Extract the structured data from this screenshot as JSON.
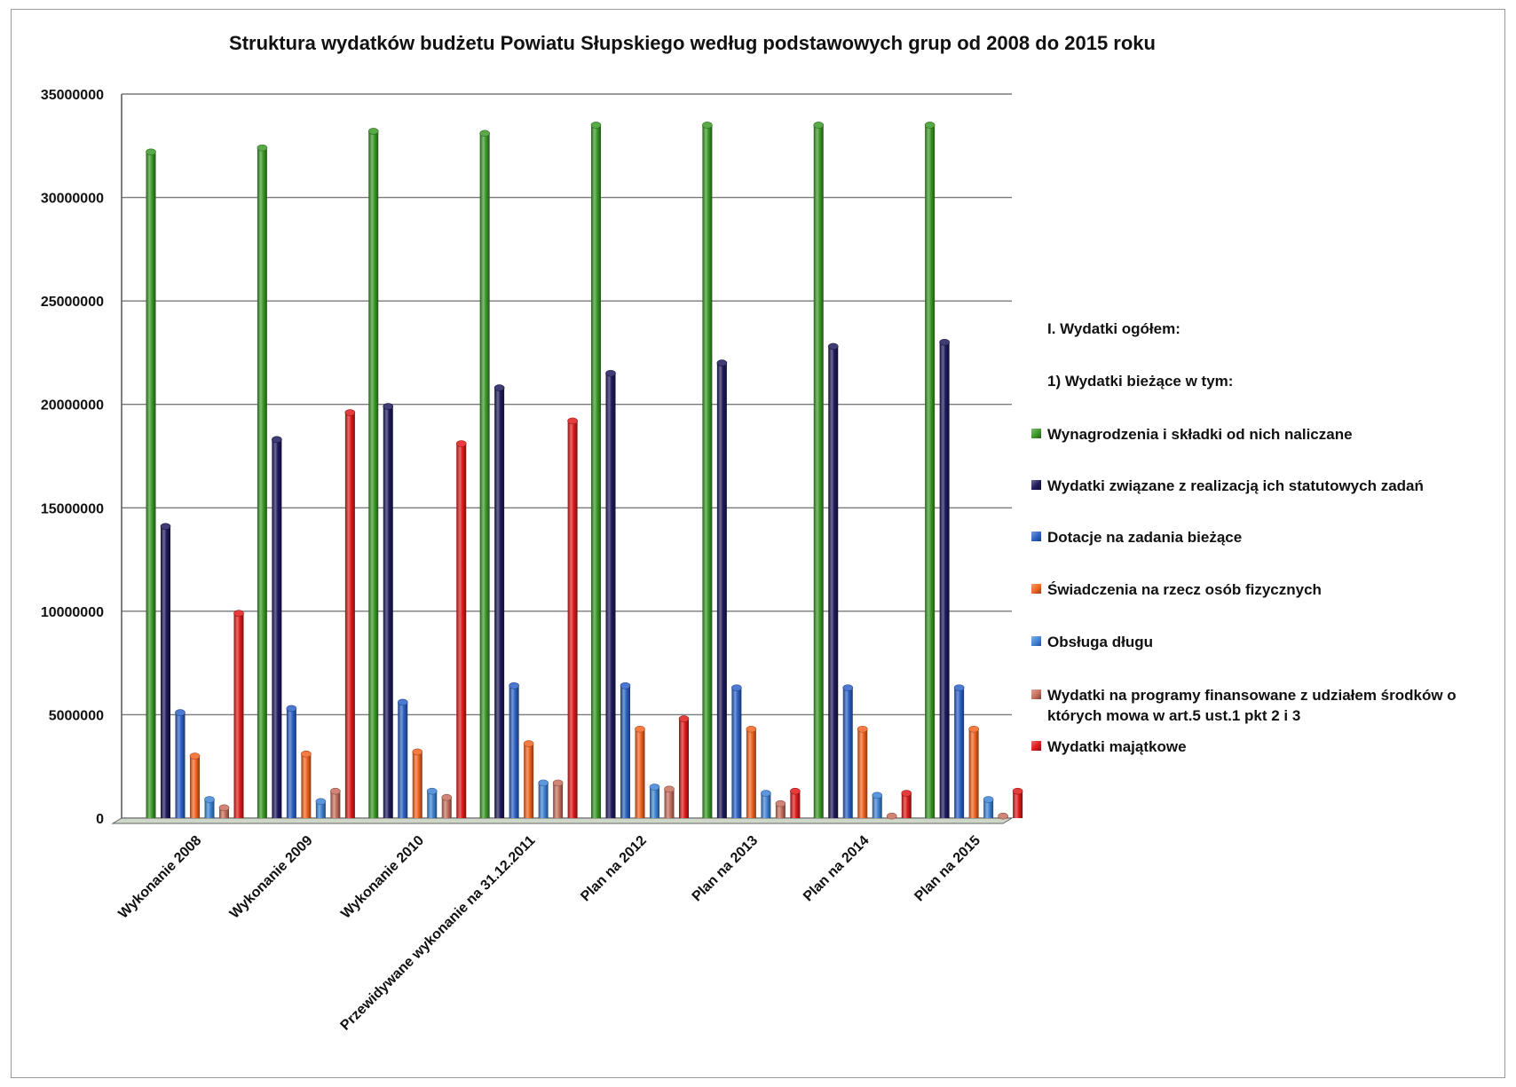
{
  "chart_data": {
    "type": "bar",
    "title": "Struktura wydatków budżetu Powiatu Słupskiego według podstawowych grup od 2008 do 2015 roku",
    "categories": [
      "Wykonanie 2008",
      "Wykonanie 2009",
      "Wykonanie 2010",
      "Przewidywane wykonanie na 31.12.2011",
      "Plan na 2012",
      "Plan na 2013",
      "Plan na 2014",
      "Plan na 2015"
    ],
    "ylim": [
      0,
      35000000
    ],
    "yticks": [
      "0",
      "5000000",
      "10000000",
      "15000000",
      "20000000",
      "25000000",
      "30000000",
      "35000000"
    ],
    "grid": true,
    "legend_position": "right",
    "legend_headers": [
      "I. Wydatki ogółem:",
      "1) Wydatki bieżące w tym:"
    ],
    "series": [
      {
        "name": "Wynagrodzenia i składki od nich naliczane",
        "color": "#3c9a28",
        "values": [
          32200000,
          32400000,
          33200000,
          33100000,
          33500000,
          33500000,
          33500000,
          33500000
        ]
      },
      {
        "name": "Wydatki związane z realizacją ich statutowych zadań",
        "color": "#1e1a5c",
        "values": [
          14100000,
          18300000,
          19900000,
          20800000,
          21500000,
          22000000,
          22800000,
          23000000
        ]
      },
      {
        "name": "Dotacje na zadania bieżące",
        "color": "#2e62c8",
        "values": [
          5100000,
          5300000,
          5600000,
          6400000,
          6400000,
          6300000,
          6300000,
          6300000
        ]
      },
      {
        "name": "Świadczenia na rzecz osób fizycznych",
        "color": "#f26522",
        "values": [
          3000000,
          3100000,
          3200000,
          3600000,
          4300000,
          4300000,
          4300000,
          4300000
        ]
      },
      {
        "name": "Obsługa długu",
        "color": "#3f84d6",
        "values": [
          900000,
          800000,
          1300000,
          1700000,
          1500000,
          1200000,
          1100000,
          900000
        ]
      },
      {
        "name": "Wydatki na programy finansowane z udziałem środków o których mowa w art.5 ust.1 pkt 2 i 3",
        "color": "#c8705e",
        "values": [
          500000,
          1300000,
          1000000,
          1700000,
          1400000,
          700000,
          100000,
          100000
        ]
      },
      {
        "name": "Wydatki majątkowe",
        "color": "#e01b1b",
        "values": [
          9900000,
          19600000,
          18100000,
          19200000,
          4800000,
          1300000,
          1200000,
          1300000
        ]
      }
    ]
  }
}
